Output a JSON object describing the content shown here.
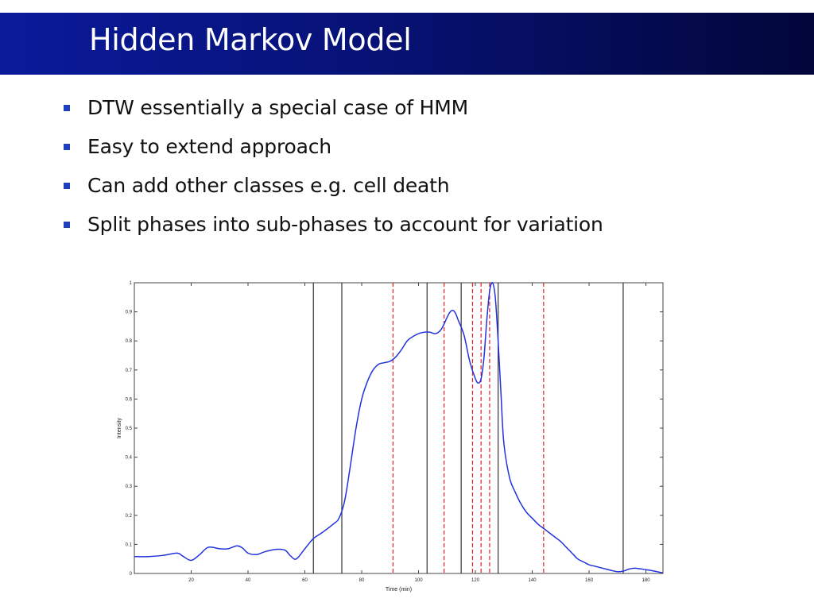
{
  "slide": {
    "title": "Hidden Markov Model",
    "bullets": [
      "DTW essentially a special case of HMM",
      "Easy to extend approach",
      "Can add other classes e.g. cell death",
      "Split phases into sub-phases to account for variation"
    ],
    "colors": {
      "title_bar_start": "#0a1a9a",
      "title_bar_end": "#02063a",
      "bullet": "#1f3fbf"
    }
  },
  "chart_data": {
    "type": "line",
    "title": "",
    "xlabel": "Time (min)",
    "ylabel": "Intensity",
    "xlim": [
      0,
      186
    ],
    "ylim": [
      0,
      1
    ],
    "xticks": [
      20,
      40,
      60,
      80,
      100,
      120,
      140,
      160,
      180
    ],
    "yticks": [
      0,
      0.1,
      0.2,
      0.3,
      0.4,
      0.5,
      0.6,
      0.7,
      0.8,
      0.9,
      1
    ],
    "grid": false,
    "line_color": "#2233dd",
    "series": [
      {
        "x": [
          0,
          5,
          10,
          15,
          17,
          20,
          23,
          26,
          30,
          33,
          36,
          38,
          40,
          43,
          46,
          50,
          53,
          55,
          57,
          60,
          63,
          66,
          70,
          72,
          74,
          76,
          78,
          80,
          82,
          84,
          86,
          88,
          90,
          92,
          94,
          96,
          98,
          100,
          102,
          104,
          106,
          108,
          110,
          111,
          112,
          113,
          114,
          116,
          118,
          120,
          121,
          122,
          123,
          124,
          125,
          126,
          127,
          128,
          129,
          130,
          132,
          134,
          136,
          138,
          140,
          142,
          144,
          146,
          148,
          150,
          152,
          154,
          156,
          158,
          160,
          162,
          164,
          166,
          168,
          170,
          172,
          174,
          176,
          178,
          180,
          182,
          184,
          186
        ],
        "y": [
          0.058,
          0.058,
          0.062,
          0.07,
          0.06,
          0.045,
          0.065,
          0.09,
          0.085,
          0.085,
          0.095,
          0.088,
          0.07,
          0.065,
          0.075,
          0.083,
          0.08,
          0.06,
          0.05,
          0.085,
          0.12,
          0.14,
          0.17,
          0.19,
          0.25,
          0.37,
          0.5,
          0.6,
          0.66,
          0.7,
          0.72,
          0.725,
          0.73,
          0.745,
          0.77,
          0.8,
          0.815,
          0.825,
          0.83,
          0.83,
          0.825,
          0.84,
          0.88,
          0.898,
          0.905,
          0.895,
          0.87,
          0.82,
          0.73,
          0.67,
          0.655,
          0.67,
          0.74,
          0.87,
          0.97,
          1.0,
          0.95,
          0.8,
          0.62,
          0.45,
          0.33,
          0.28,
          0.24,
          0.21,
          0.19,
          0.17,
          0.155,
          0.14,
          0.125,
          0.11,
          0.09,
          0.07,
          0.05,
          0.04,
          0.03,
          0.025,
          0.02,
          0.015,
          0.01,
          0.006,
          0.008,
          0.015,
          0.018,
          0.016,
          0.013,
          0.01,
          0.006,
          0.002
        ]
      }
    ],
    "vlines_solid": [
      63,
      73,
      103,
      115,
      128,
      172
    ],
    "vlines_dashed": [
      91,
      109,
      119,
      122,
      125,
      144
    ],
    "vline_solid_color": "#333333",
    "vline_dashed_color": "#dd2222"
  }
}
